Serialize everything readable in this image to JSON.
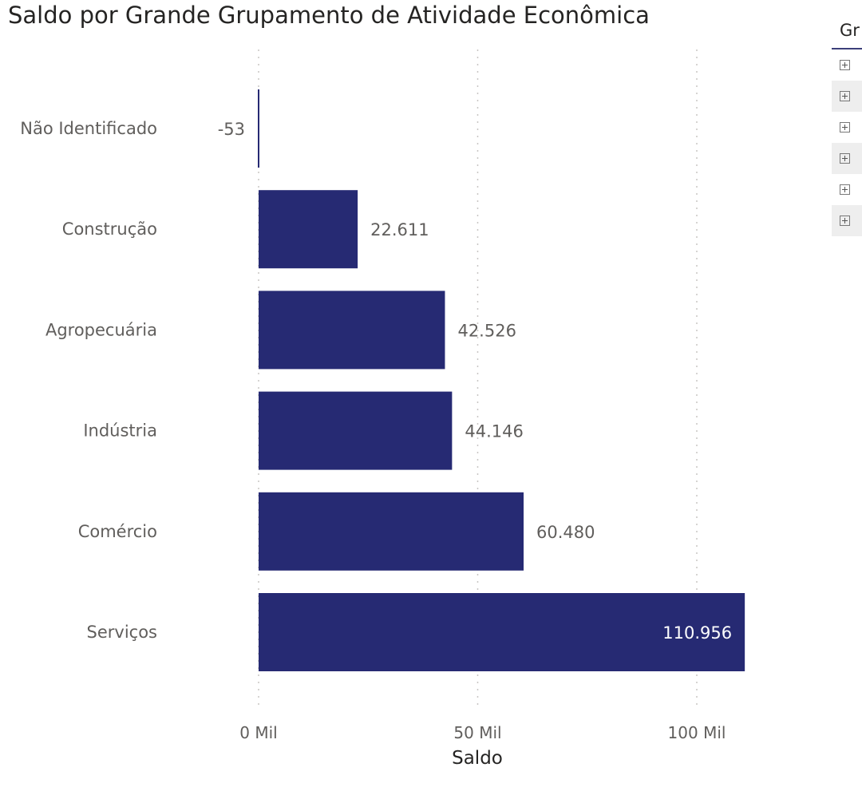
{
  "chart_data": {
    "type": "bar",
    "orientation": "horizontal",
    "title": "Saldo por Grande Grupamento de Atividade Econômica",
    "xlabel": "Saldo",
    "ylabel": "",
    "categories": [
      "Não Identificado",
      "Construção",
      "Agropecuária",
      "Indústria",
      "Comércio",
      "Serviços"
    ],
    "values": [
      -53,
      22611,
      42526,
      44146,
      60480,
      110956
    ],
    "value_labels": [
      "-53",
      "22.611",
      "42.526",
      "44.146",
      "60.480",
      "110.956"
    ],
    "xticks": [
      0,
      50000,
      100000
    ],
    "xtick_labels": [
      "0 Mil",
      "50 Mil",
      "100 Mil"
    ],
    "xlim": [
      0,
      110956
    ],
    "grid": "vertical dotted",
    "legend": "none",
    "bar_color": "#262a73"
  },
  "side_table": {
    "header": "Gr",
    "expand_icon": "plus-square-icon",
    "row_count": 6
  }
}
